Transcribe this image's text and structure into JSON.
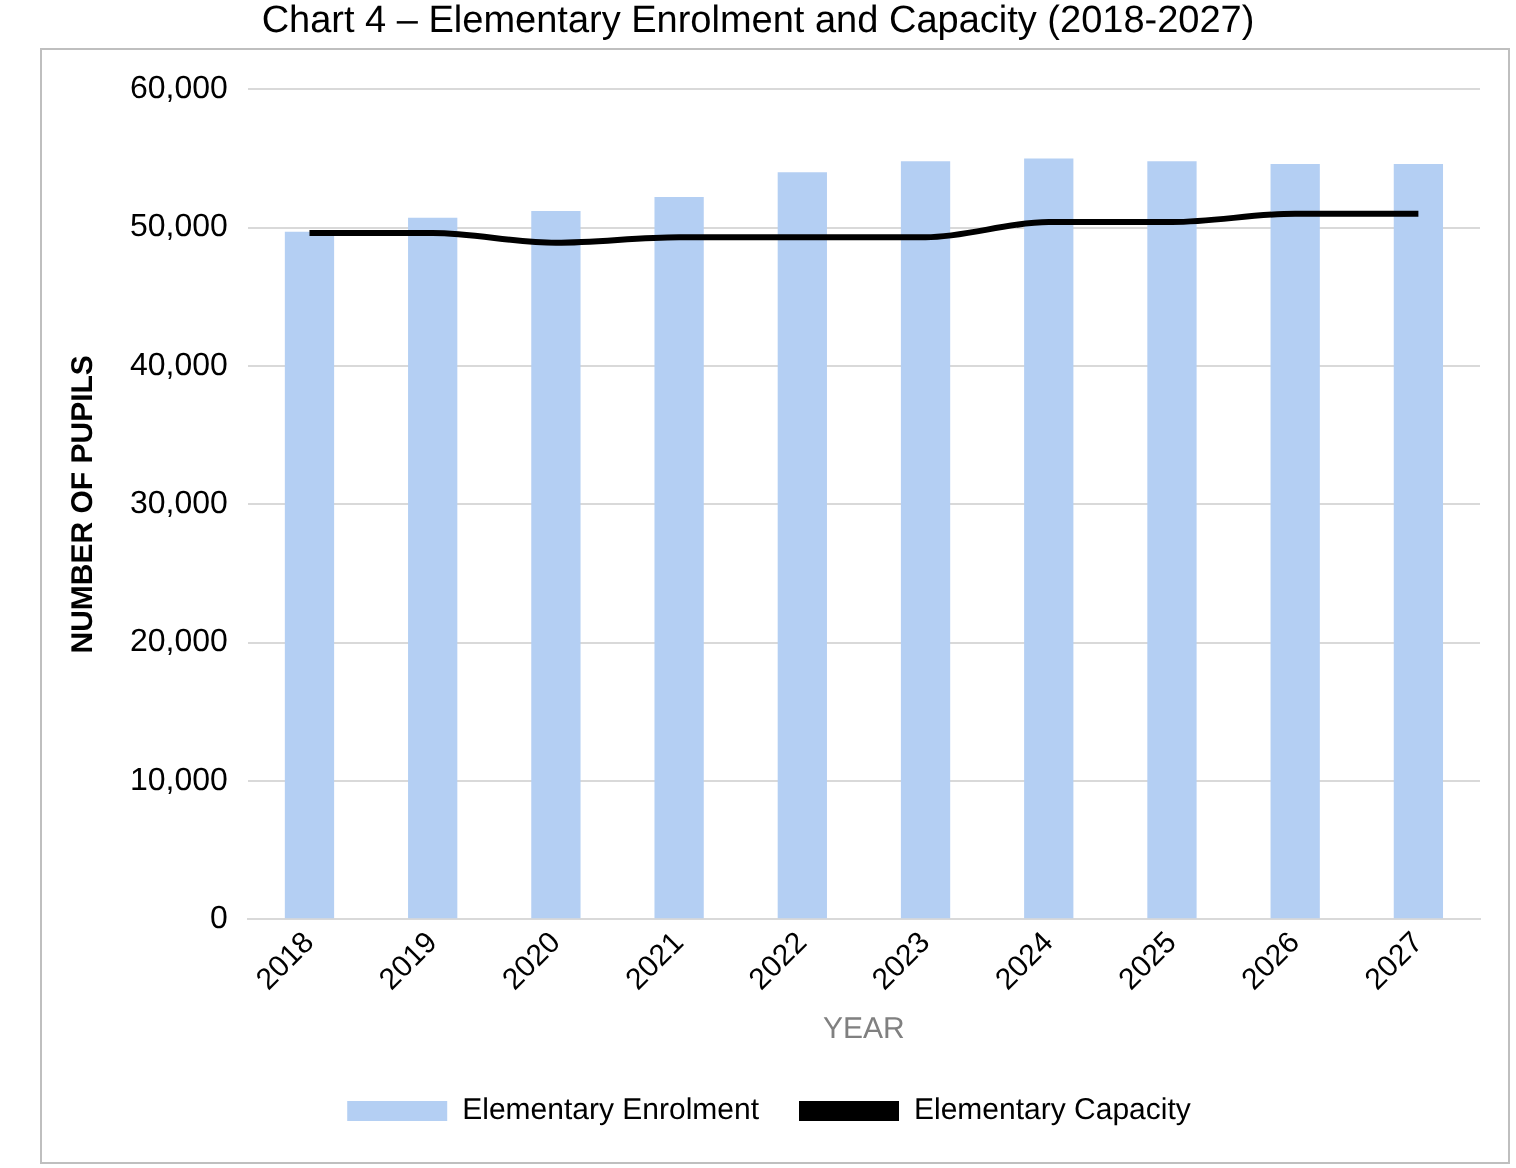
{
  "chart_data": {
    "type": "bar",
    "title": "Chart 4 – Elementary Enrolment and Capacity (2018-2027)",
    "xlabel": "YEAR",
    "ylabel": "NUMBER OF PUPILS",
    "categories": [
      "2018",
      "2019",
      "2020",
      "2021",
      "2022",
      "2023",
      "2024",
      "2025",
      "2026",
      "2027"
    ],
    "series": [
      {
        "name": "Elementary Enrolment",
        "color": "#b4cff3",
        "values": [
          49700,
          50700,
          51200,
          52200,
          54000,
          54800,
          55000,
          54800,
          54600,
          54600
        ]
      },
      {
        "name": "Elementary Capacity",
        "type": "line",
        "color": "#000000",
        "values": [
          49600,
          49600,
          48900,
          49300,
          49300,
          49300,
          50400,
          50400,
          51000,
          51000
        ]
      }
    ],
    "ylim": [
      0,
      60000
    ],
    "yticks": [
      0,
      {
        "value": 10000,
        "label": "10,000"
      },
      {
        "value": 20000,
        "label": "20,000"
      },
      {
        "value": 30000,
        "label": "30,000"
      },
      {
        "value": 40000,
        "label": "40,000"
      },
      {
        "value": 50000,
        "label": "50,000"
      },
      {
        "value": 60000,
        "label": "60,000"
      }
    ],
    "grid": "y",
    "legend": "bottom",
    "marker": "none"
  }
}
